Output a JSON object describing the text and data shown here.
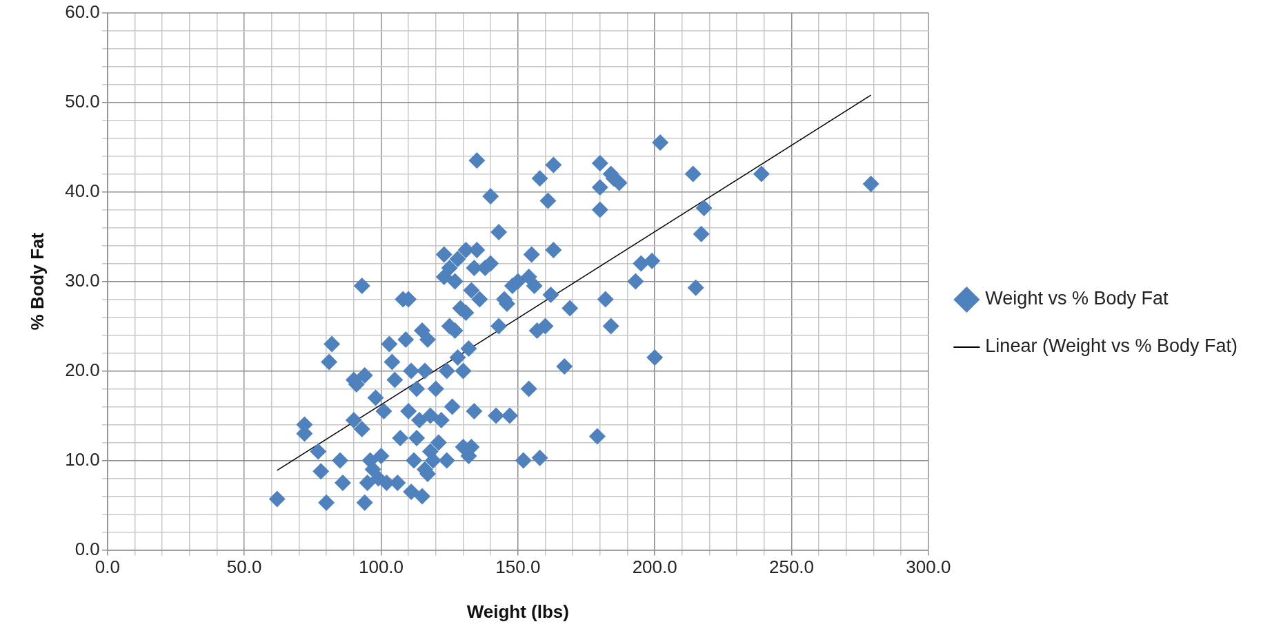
{
  "chart_data": {
    "type": "scatter",
    "xlabel": "Weight (lbs)",
    "ylabel": "% Body Fat",
    "legend": "right",
    "grid": true,
    "marker": "diamond",
    "xlim": [
      0,
      300
    ],
    "ylim": [
      0,
      60
    ],
    "xticks": [
      {
        "value": 0,
        "label": "0.0"
      },
      {
        "value": 10,
        "label": null
      },
      {
        "value": 20,
        "label": null
      },
      {
        "value": 30,
        "label": null
      },
      {
        "value": 40,
        "label": null
      },
      {
        "value": 50,
        "label": "50.0"
      },
      {
        "value": 60,
        "label": null
      },
      {
        "value": 70,
        "label": null
      },
      {
        "value": 80,
        "label": null
      },
      {
        "value": 90,
        "label": null
      },
      {
        "value": 100,
        "label": "100.0"
      },
      {
        "value": 110,
        "label": null
      },
      {
        "value": 120,
        "label": null
      },
      {
        "value": 130,
        "label": null
      },
      {
        "value": 140,
        "label": null
      },
      {
        "value": 150,
        "label": "150.0"
      },
      {
        "value": 160,
        "label": null
      },
      {
        "value": 170,
        "label": null
      },
      {
        "value": 180,
        "label": null
      },
      {
        "value": 190,
        "label": null
      },
      {
        "value": 200,
        "label": "200.0"
      },
      {
        "value": 210,
        "label": null
      },
      {
        "value": 220,
        "label": null
      },
      {
        "value": 230,
        "label": null
      },
      {
        "value": 240,
        "label": null
      },
      {
        "value": 250,
        "label": "250.0"
      },
      {
        "value": 260,
        "label": null
      },
      {
        "value": 270,
        "label": null
      },
      {
        "value": 280,
        "label": null
      },
      {
        "value": 290,
        "label": null
      },
      {
        "value": 300,
        "label": "300.0"
      }
    ],
    "yticks": [
      {
        "value": 0,
        "label": "0.0"
      },
      {
        "value": 2,
        "label": null
      },
      {
        "value": 4,
        "label": null
      },
      {
        "value": 6,
        "label": null
      },
      {
        "value": 8,
        "label": null
      },
      {
        "value": 10,
        "label": "10.0"
      },
      {
        "value": 12,
        "label": null
      },
      {
        "value": 14,
        "label": null
      },
      {
        "value": 16,
        "label": null
      },
      {
        "value": 18,
        "label": null
      },
      {
        "value": 20,
        "label": "20.0"
      },
      {
        "value": 22,
        "label": null
      },
      {
        "value": 24,
        "label": null
      },
      {
        "value": 26,
        "label": null
      },
      {
        "value": 28,
        "label": null
      },
      {
        "value": 30,
        "label": "30.0"
      },
      {
        "value": 32,
        "label": null
      },
      {
        "value": 34,
        "label": null
      },
      {
        "value": 36,
        "label": null
      },
      {
        "value": 38,
        "label": null
      },
      {
        "value": 40,
        "label": "40.0"
      },
      {
        "value": 42,
        "label": null
      },
      {
        "value": 44,
        "label": null
      },
      {
        "value": 46,
        "label": null
      },
      {
        "value": 48,
        "label": null
      },
      {
        "value": 50,
        "label": "50.0"
      },
      {
        "value": 52,
        "label": null
      },
      {
        "value": 54,
        "label": null
      },
      {
        "value": 56,
        "label": null
      },
      {
        "value": 58,
        "label": null
      },
      {
        "value": 60,
        "label": "60.0"
      }
    ],
    "series": [
      {
        "name": "Weight vs % Body Fat",
        "type": "scatter",
        "color": "#4f81bd",
        "x": [
          62,
          72,
          72,
          77,
          78,
          80,
          81,
          82,
          85,
          86,
          90,
          90,
          91,
          93,
          93,
          94,
          94,
          95,
          96,
          97,
          98,
          99,
          100,
          101,
          102,
          103,
          104,
          105,
          106,
          107,
          108,
          109,
          110,
          110,
          111,
          111,
          112,
          113,
          113,
          114,
          115,
          115,
          116,
          116,
          117,
          117,
          118,
          118,
          119,
          120,
          121,
          122,
          123,
          123,
          124,
          124,
          125,
          125,
          126,
          127,
          127,
          128,
          128,
          129,
          130,
          130,
          131,
          131,
          132,
          132,
          133,
          133,
          134,
          134,
          135,
          135,
          136,
          138,
          140,
          140,
          142,
          143,
          143,
          145,
          146,
          147,
          148,
          150,
          152,
          154,
          154,
          155,
          156,
          157,
          158,
          158,
          160,
          161,
          162,
          163,
          163,
          167,
          169,
          179,
          180,
          180,
          180,
          182,
          184,
          184,
          185,
          187,
          193,
          195,
          199,
          200,
          202,
          214,
          215,
          217,
          218,
          239,
          279
        ],
        "values": [
          5.7,
          14,
          13,
          11,
          8.8,
          5.3,
          21,
          23,
          10,
          7.5,
          14.5,
          19,
          18.5,
          29.5,
          13.5,
          19.5,
          5.3,
          7.5,
          10,
          9,
          17,
          8,
          10.5,
          15.5,
          7.5,
          23,
          21,
          19,
          7.5,
          12.5,
          28,
          23.5,
          28,
          15.5,
          6.5,
          20,
          10,
          12.5,
          18,
          14.5,
          24.5,
          6,
          9,
          20,
          8.5,
          23.5,
          15,
          11,
          10,
          18,
          12,
          14.5,
          30.5,
          33,
          20,
          10,
          31.5,
          25,
          16,
          30,
          24.5,
          32.5,
          21.5,
          27,
          20,
          11.5,
          26.5,
          33.5,
          22.5,
          10.5,
          29,
          11.5,
          15.5,
          31.5,
          43.5,
          33.5,
          28,
          31.5,
          39.5,
          32,
          15,
          25,
          35.5,
          28,
          27.5,
          15,
          29.5,
          30,
          10,
          18,
          30.5,
          33,
          29.5,
          24.5,
          41.5,
          10.3,
          25,
          39,
          28.5,
          33.5,
          43,
          20.5,
          27,
          12.7,
          43.2,
          38,
          40.5,
          28,
          25,
          42,
          41.5,
          41,
          30,
          32,
          32.3,
          21.5,
          45.5,
          42,
          29.3,
          35.3,
          38.2,
          42,
          40.9
        ]
      },
      {
        "name": "Linear (Weight vs % Body Fat)",
        "type": "line",
        "color": "#000000",
        "line_style": "solid",
        "marker": "none",
        "x": [
          62,
          279
        ],
        "values": [
          8.9,
          50.8
        ]
      }
    ]
  }
}
